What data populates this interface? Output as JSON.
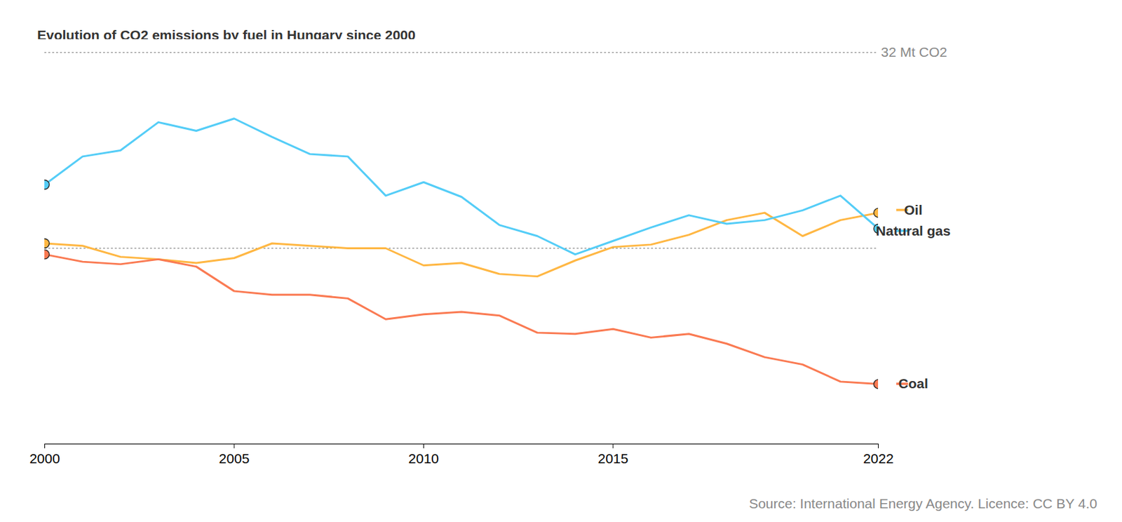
{
  "chart_data": {
    "type": "line",
    "title": "Evolution of CO2 emissions by fuel in Hungary since 2000",
    "source": "Source: International Energy Agency. Licence: CC BY 4.0",
    "x": [
      2000,
      2001,
      2002,
      2003,
      2004,
      2005,
      2006,
      2007,
      2008,
      2009,
      2010,
      2011,
      2012,
      2013,
      2014,
      2015,
      2016,
      2017,
      2018,
      2019,
      2020,
      2021,
      2022
    ],
    "xlim": [
      2000,
      2022
    ],
    "xticks": [
      2000,
      2005,
      2010,
      2015,
      2022
    ],
    "ylim": [
      0,
      32
    ],
    "yticks": [
      {
        "value": 16,
        "label": null
      },
      {
        "value": 32,
        "label": "32 Mt CO2"
      }
    ],
    "grid": true,
    "series": [
      {
        "name": "Oil",
        "color": "#ffb743",
        "marker": "circle",
        "values": [
          16.4,
          16.2,
          15.3,
          15.1,
          14.8,
          15.2,
          16.4,
          16.2,
          16.0,
          16.0,
          14.6,
          14.8,
          13.9,
          13.7,
          15.0,
          16.1,
          16.3,
          17.1,
          18.3,
          18.9,
          17.0,
          18.3,
          18.9
        ]
      },
      {
        "name": "Natural gas",
        "color": "#54cdf7",
        "marker": "circle",
        "values": [
          21.2,
          23.5,
          24.0,
          26.3,
          25.6,
          26.6,
          25.1,
          23.7,
          23.5,
          20.3,
          21.4,
          20.2,
          17.9,
          17.0,
          15.5,
          16.6,
          17.7,
          18.7,
          18.0,
          18.3,
          19.1,
          20.3,
          17.6
        ]
      },
      {
        "name": "Coal",
        "color": "#fa7a52",
        "marker": "circle",
        "values": [
          15.5,
          14.9,
          14.7,
          15.1,
          14.5,
          12.5,
          12.2,
          12.2,
          11.9,
          10.2,
          10.6,
          10.8,
          10.5,
          9.1,
          9.0,
          9.4,
          8.7,
          9.0,
          8.2,
          7.1,
          6.5,
          5.1,
          4.9
        ]
      }
    ]
  }
}
